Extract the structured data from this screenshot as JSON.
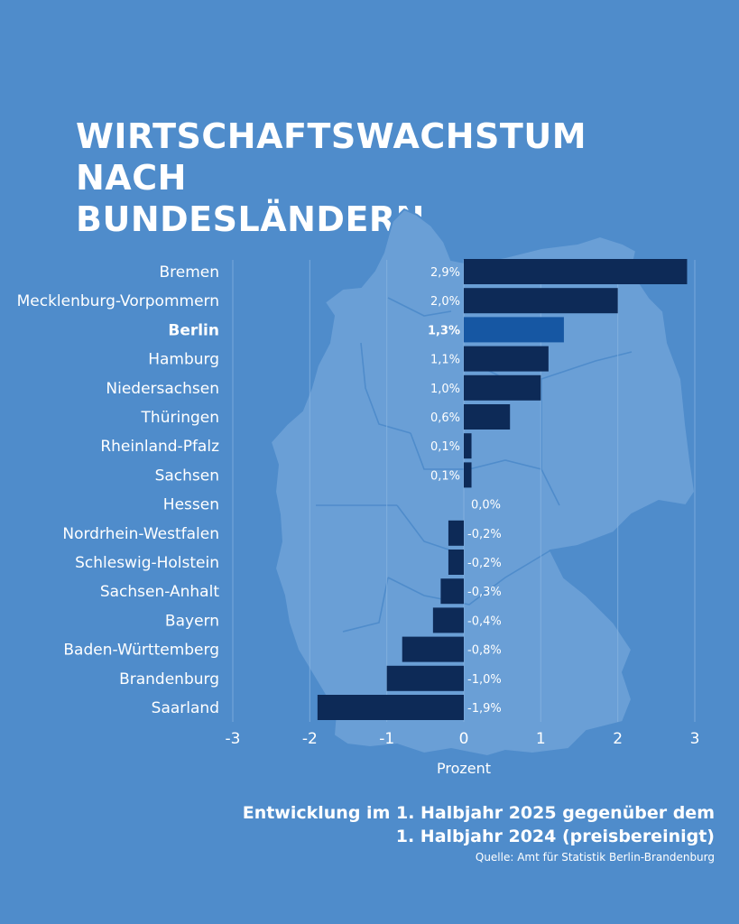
{
  "title_lines": [
    "WIRTSCHAFTSWACHSTUM NACH",
    "BUNDESLÄNDERN"
  ],
  "subtitle_lines": [
    "Entwicklung im 1. Halbjahr 2025 gegenüber dem",
    "1. Halbjahr 2024 (preisbereinigt)"
  ],
  "source": "Quelle: Amt für Statistik Berlin-Brandenburg",
  "colors": {
    "background": "#4f8ccb",
    "map": "#6a9fd6",
    "bar": "#0d2a57",
    "highlight_bar": "#1657a3",
    "grid": "#8cb6e2",
    "text": "#ffffff"
  },
  "chart_data": {
    "type": "bar",
    "orientation": "horizontal",
    "categories": [
      "Bremen",
      "Mecklenburg-Vorpommern",
      "Berlin",
      "Hamburg",
      "Niedersachsen",
      "Thüringen",
      "Rheinland-Pfalz",
      "Sachsen",
      "Hessen",
      "Nordrhein-Westfalen",
      "Schleswig-Holstein",
      "Sachsen-Anhalt",
      "Bayern",
      "Baden-Württemberg",
      "Brandenburg",
      "Saarland"
    ],
    "values": [
      2.9,
      2.0,
      1.3,
      1.1,
      1.0,
      0.6,
      0.1,
      0.1,
      0.0,
      -0.2,
      -0.2,
      -0.3,
      -0.4,
      -0.8,
      -1.0,
      -1.9
    ],
    "value_labels": [
      "2,9%",
      "2,0%",
      "1,3%",
      "1,1%",
      "1,0%",
      "0,6%",
      "0,1%",
      "0,1%",
      "0,0%",
      "-0,2%",
      "-0,2%",
      "-0,3%",
      "-0,4%",
      "-0,8%",
      "-1,0%",
      "-1,9%"
    ],
    "highlight": "Berlin",
    "xlabel": "Prozent",
    "xlim": [
      -3,
      3
    ],
    "xticks": [
      -3,
      -2,
      -1,
      0,
      1,
      2,
      3
    ],
    "xtick_labels": [
      "-3",
      "-2",
      "-1",
      "0",
      "1",
      "2",
      "3"
    ],
    "grid": true
  }
}
